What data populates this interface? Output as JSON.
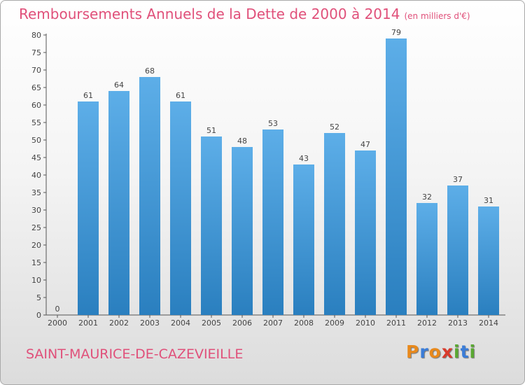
{
  "title": "Remboursements Annuels de la Dette de 2000 à 2014",
  "subtitle": "(en milliers d'€)",
  "commune": "SAINT-MAURICE-DE-CAZEVIEILLE",
  "logo": {
    "letters": [
      "P",
      "r",
      "o",
      "x",
      "i",
      "t",
      "i"
    ],
    "colors": [
      "#e8891c",
      "#3b7dd8",
      "#e8891c",
      "#d93a2b",
      "#5aa832",
      "#3b7dd8",
      "#5aa832"
    ]
  },
  "colors": {
    "bar_top": "#5daee8",
    "bar_bottom": "#2a7fbf",
    "accent": "#e0507a"
  },
  "chart_data": {
    "type": "bar",
    "title": "Remboursements Annuels de la Dette de 2000 à 2014",
    "subtitle": "(en milliers d'€)",
    "xlabel": "",
    "ylabel": "",
    "categories": [
      "2000",
      "2001",
      "2002",
      "2003",
      "2004",
      "2005",
      "2006",
      "2007",
      "2008",
      "2009",
      "2010",
      "2011",
      "2012",
      "2013",
      "2014"
    ],
    "values": [
      0,
      61,
      64,
      68,
      61,
      51,
      48,
      53,
      43,
      52,
      47,
      79,
      32,
      37,
      31
    ],
    "ylim": [
      0,
      80
    ],
    "yticks": [
      0,
      5,
      10,
      15,
      20,
      25,
      30,
      35,
      40,
      45,
      50,
      55,
      60,
      65,
      70,
      75,
      80
    ],
    "grid": false,
    "legend": "none"
  }
}
